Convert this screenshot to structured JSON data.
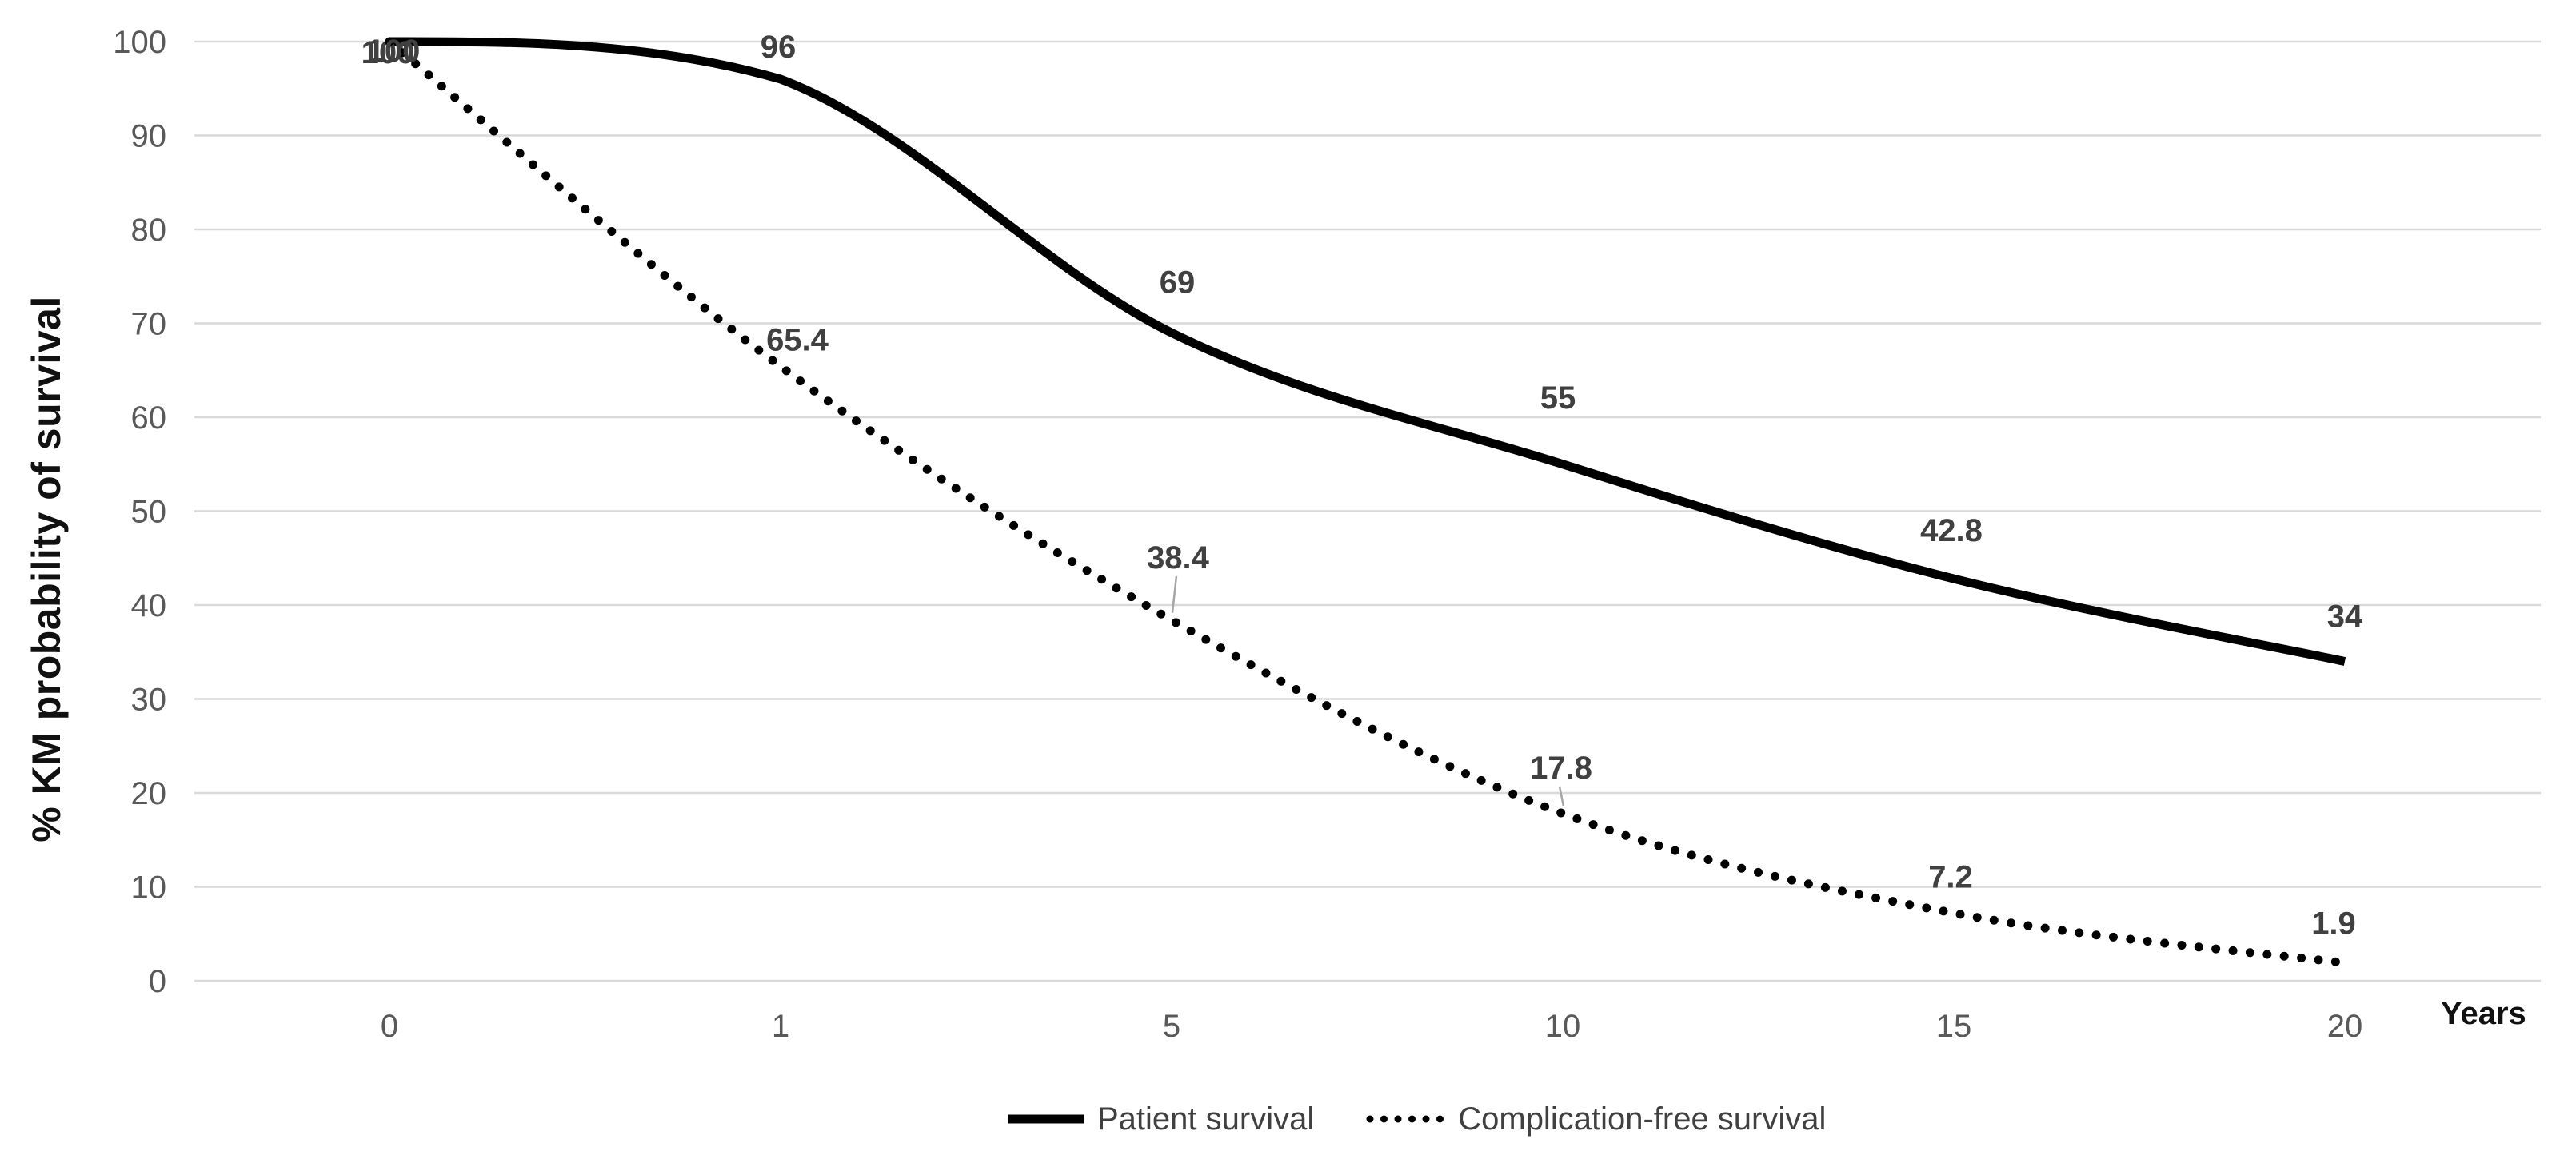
{
  "chart_data": {
    "type": "line",
    "title": "",
    "xlabel": "Years",
    "ylabel": "% KM probability of survival",
    "x_categories": [
      "0",
      "1",
      "5",
      "10",
      "15",
      "20"
    ],
    "x_axis_type": "category-equal-spacing",
    "y_ticks": [
      0,
      10,
      20,
      30,
      40,
      50,
      60,
      70,
      80,
      90,
      100
    ],
    "ylim": [
      0,
      100
    ],
    "grid": "horizontal",
    "legend_position": "bottom",
    "series": [
      {
        "name": "Patient survival",
        "style": "solid",
        "color": "#000000",
        "values": [
          100,
          96,
          69,
          55,
          42.8,
          34
        ],
        "labels": [
          "100",
          "96",
          "69",
          "55",
          "42.8",
          "34"
        ]
      },
      {
        "name": "Complication-free survival",
        "style": "dotted",
        "color": "#000000",
        "values": [
          100,
          65.4,
          38.4,
          17.8,
          7.2,
          1.9
        ],
        "labels": [
          "100",
          "65.4",
          "38.4",
          "17.8",
          "7.2",
          "1.9"
        ]
      }
    ]
  },
  "colors": {
    "gridline": "#d9d9d9",
    "tick_label": "#595959",
    "data_label": "#404040",
    "axis_title": "#111111",
    "line": "#000000",
    "leader_line": "#a6a6a6",
    "background": "#ffffff"
  }
}
